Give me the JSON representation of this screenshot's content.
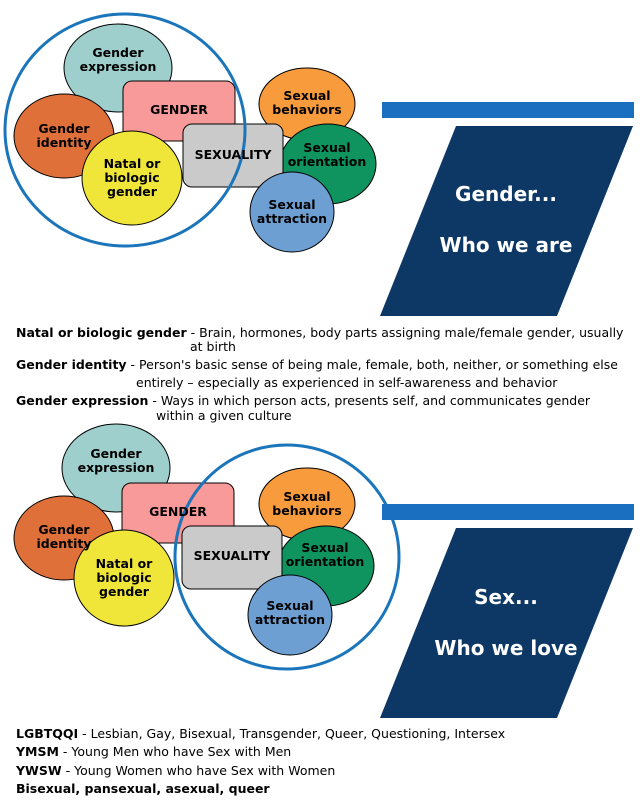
{
  "diagram1": {
    "labels": {
      "gender_expression": [
        "Gender",
        "expression"
      ],
      "gender": "GENDER",
      "gender_identity": [
        "Gender",
        "identity"
      ],
      "natal": [
        "Natal or",
        "biologic",
        "gender"
      ],
      "sexuality": "SEXUALITY",
      "sexual_behaviors": [
        "Sexual",
        "behaviors"
      ],
      "sexual_orientation": [
        "Sexual",
        "orientation"
      ],
      "sexual_attraction": [
        "Sexual",
        "attraction"
      ]
    },
    "banner": {
      "line1": "Gender...",
      "line2": "Who we are"
    }
  },
  "definitions1": [
    {
      "term": "Natal or biologic gender",
      "sep": " - ",
      "text": "Brain, hormones, body parts assigning male/female gender, usually",
      "cont": "at birth"
    },
    {
      "term": "Gender identity",
      "sep": " - ",
      "text": "Person's basic sense of being male, female, both, neither, or something else",
      "cont": "entirely – especially as experienced in self-awareness and behavior"
    },
    {
      "term": "Gender expression",
      "sep": " - ",
      "text": "Ways in which person acts, presents self, and communicates gender",
      "cont": "within a given culture"
    }
  ],
  "diagram2": {
    "labels": {
      "gender_expression": [
        "Gender",
        "expression"
      ],
      "gender": "GENDER",
      "gender_identity": [
        "Gender",
        "identity"
      ],
      "natal": [
        "Natal or",
        "biologic",
        "gender"
      ],
      "sexuality": "SEXUALITY",
      "sexual_behaviors": [
        "Sexual",
        "behaviors"
      ],
      "sexual_orientation": [
        "Sexual",
        "orientation"
      ],
      "sexual_attraction": [
        "Sexual",
        "attraction"
      ]
    },
    "banner": {
      "line1": "Sex...",
      "line2": "Who we love"
    }
  },
  "definitions2": [
    {
      "term": "LGBTQQI",
      "sep": " - ",
      "text": "Lesbian, Gay, Bisexual, Transgender, Queer, Questioning, Intersex"
    },
    {
      "term": "YMSM",
      "sep": " - ",
      "text": "Young Men who have Sex with Men"
    },
    {
      "term": "YWSW",
      "sep": " - ",
      "text": "Young Women who have Sex with Women"
    },
    {
      "term": "Bisexual, pansexual, asexual, queer",
      "sep": "",
      "text": ""
    }
  ],
  "colors": {
    "gender_expression": "#9ecfcd",
    "gender": "#f99a9a",
    "gender_identity": "#e0703a",
    "natal": "#f0e63a",
    "sexuality": "#cacaca",
    "sexual_behaviors": "#f79b3c",
    "sexual_orientation": "#0f9460",
    "sexual_attraction": "#6e9fd3",
    "ring": "#1b75bb",
    "banner_bar": "#1b6fc0",
    "banner_fill": "#0d3865"
  }
}
